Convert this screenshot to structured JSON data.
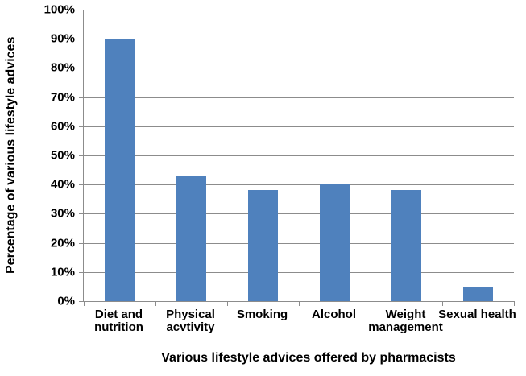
{
  "chart_data": {
    "type": "bar",
    "categories": [
      "Diet and nutrition",
      "Physical acvtivity",
      "Smoking",
      "Alcohol",
      "Weight management",
      "Sexual health"
    ],
    "values": [
      90,
      43,
      38,
      40,
      38,
      5
    ],
    "xlabel": "Various lifestyle advices offered by pharmacists",
    "ylabel": "Percentage of various lifestyle advices",
    "ylim": [
      0,
      100
    ],
    "y_tick_step": 10,
    "y_tick_labels": [
      "0%",
      "10%",
      "20%",
      "30%",
      "40%",
      "50%",
      "60%",
      "70%",
      "80%",
      "90%",
      "100%"
    ],
    "grid": true,
    "legend": "none",
    "colors": {
      "bar": "#4F81BD",
      "gridline": "#8C8C8C",
      "axis": "#8C8C8C",
      "text": "#000000",
      "background": "#FFFFFF"
    }
  }
}
